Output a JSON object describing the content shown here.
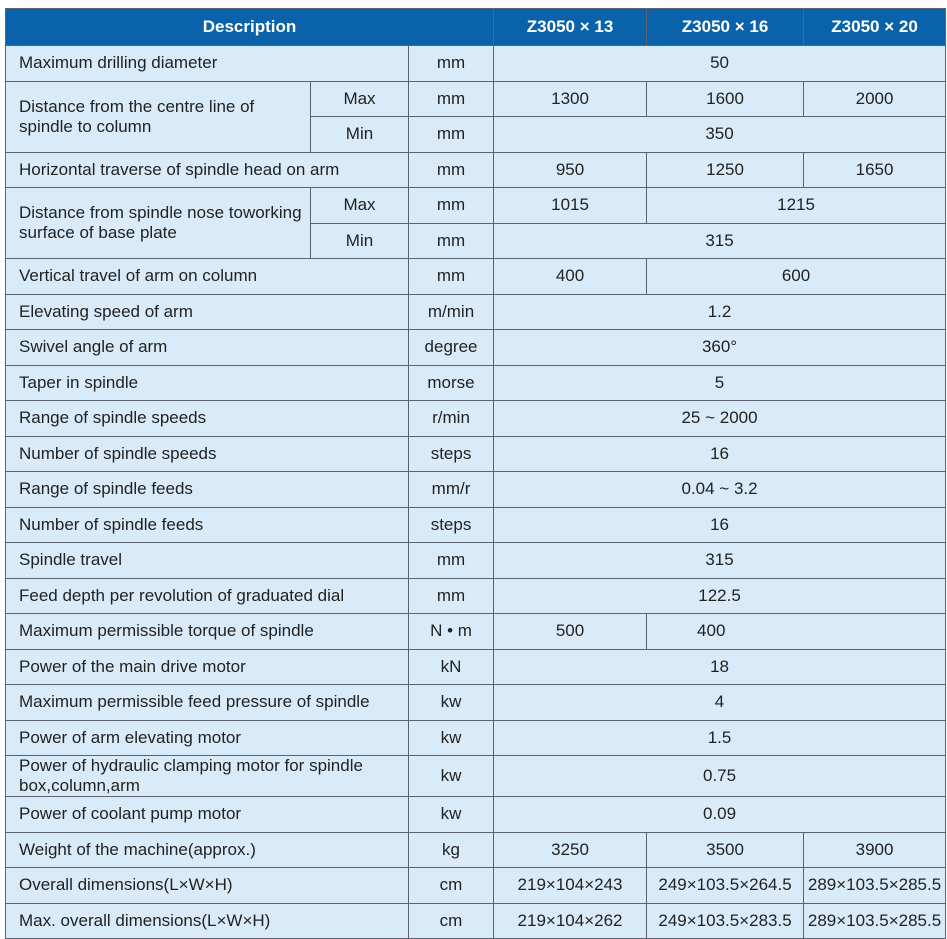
{
  "header": {
    "description": "Description",
    "models": [
      "Z3050 × 13",
      "Z3050 × 16",
      "Z3050 × 20"
    ]
  },
  "rows": [
    {
      "desc": "Maximum drilling diameter",
      "unit": "mm",
      "values": [
        "50"
      ]
    },
    {
      "desc": "Distance from the centre line of spindle to column",
      "sub": [
        {
          "label": "Max",
          "unit": "mm",
          "values": [
            "1300",
            "1600",
            "2000"
          ]
        },
        {
          "label": "Min",
          "unit": "mm",
          "values": [
            "350"
          ]
        }
      ]
    },
    {
      "desc": "Horizontal traverse of spindle head on arm",
      "unit": "mm",
      "values": [
        "950",
        "1250",
        "1650"
      ]
    },
    {
      "desc": "Distance from spindle nose toworking surface of base plate",
      "sub": [
        {
          "label": "Max",
          "unit": "mm",
          "values": [
            "1015",
            "1215"
          ]
        },
        {
          "label": "Min",
          "unit": "mm",
          "values": [
            "315"
          ]
        }
      ]
    },
    {
      "desc": "Vertical travel of arm on column",
      "unit": "mm",
      "values": [
        "400",
        "600"
      ]
    },
    {
      "desc": "Elevating speed of arm",
      "unit": "m/min",
      "values": [
        "1.2"
      ]
    },
    {
      "desc": "Swivel angle of arm",
      "unit": "degree",
      "values": [
        "360°"
      ]
    },
    {
      "desc": "Taper in spindle",
      "unit": "morse",
      "values": [
        "5"
      ]
    },
    {
      "desc": "Range of spindle speeds",
      "unit": "r/min",
      "values": [
        "25 ~ 2000"
      ]
    },
    {
      "desc": "Number of spindle speeds",
      "unit": "steps",
      "values": [
        "16"
      ]
    },
    {
      "desc": "Range of spindle feeds",
      "unit": "mm/r",
      "values": [
        "0.04 ~ 3.2"
      ]
    },
    {
      "desc": "Number of spindle feeds",
      "unit": "steps",
      "values": [
        "16"
      ]
    },
    {
      "desc": "Spindle travel",
      "unit": "mm",
      "values": [
        "315"
      ]
    },
    {
      "desc": "Feed depth per revolution of graduated dial",
      "unit": "mm",
      "values": [
        "122.5"
      ]
    },
    {
      "desc": "Maximum permissible torque of spindle",
      "unit": "N • m",
      "values": [
        "500",
        "400"
      ]
    },
    {
      "desc": "Power of the main drive motor",
      "unit": "kN",
      "values": [
        "18"
      ]
    },
    {
      "desc": "Maximum permissible feed pressure of spindle",
      "unit": "kw",
      "values": [
        "4"
      ]
    },
    {
      "desc": "Power of arm elevating  motor",
      "unit": "kw",
      "values": [
        "1.5"
      ]
    },
    {
      "desc": "Power of hydraulic clamping motor for spindle box,column,arm",
      "unit": "kw",
      "values": [
        "0.75"
      ]
    },
    {
      "desc": "Power of coolant pump motor",
      "unit": "kw",
      "values": [
        "0.09"
      ]
    },
    {
      "desc": "Weight of the machine(approx.)",
      "unit": "kg",
      "values": [
        "3250",
        "3500",
        "3900"
      ]
    },
    {
      "desc": "Overall dimensions(L×W×H)",
      "unit": "cm",
      "values": [
        "219×104×243",
        "249×103.5×264.5",
        "289×103.5×285.5"
      ]
    },
    {
      "desc": "Max. overall dimensions(L×W×H)",
      "unit": "cm",
      "values": [
        "219×104×262",
        "249×103.5×283.5",
        "289×103.5×285.5"
      ]
    }
  ],
  "colors": {
    "header_bg": "#0a63aa",
    "cell_bg": "#d9ebf8",
    "border": "#5a6470"
  }
}
